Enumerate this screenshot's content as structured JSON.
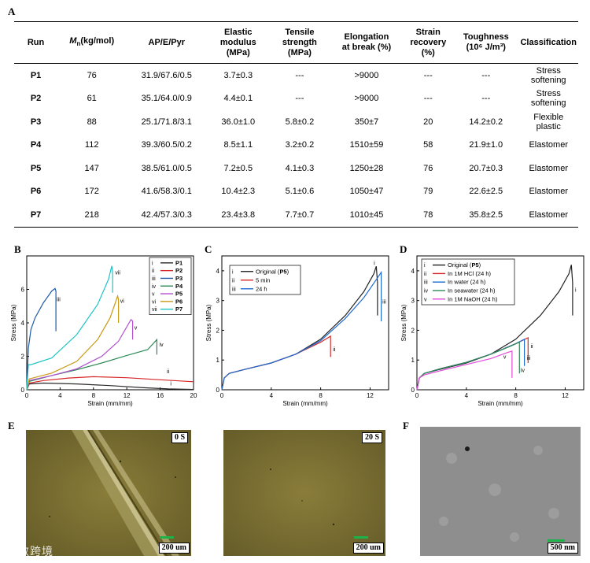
{
  "panels": {
    "A": "A",
    "B": "B",
    "C": "C",
    "D": "D",
    "E": "E",
    "F": "F"
  },
  "table": {
    "headers": [
      "Run",
      "Mn (kg/mol)",
      "AP/E/Pyr",
      "Elastic modulus (MPa)",
      "Tensile strength (MPa)",
      "Elongation at break (%)",
      "Strain recovery (%)",
      "Toughness (10⁶ J/m³)",
      "Classification"
    ],
    "header_lines": [
      [
        "Run"
      ],
      [
        "Mn(kg/mol)"
      ],
      [
        "AP/E/Pyr"
      ],
      [
        "Elastic",
        "modulus",
        "(MPa)"
      ],
      [
        "Tensile",
        "strength",
        "(MPa)"
      ],
      [
        "Elongation",
        "at break (%)"
      ],
      [
        "Strain",
        "recovery",
        "(%)"
      ],
      [
        "Toughness",
        "(10⁶ J/m³)"
      ],
      [
        "Classification"
      ]
    ],
    "mn_symbol": "M",
    "mn_sub": "n",
    "mn_unit": "(kg/mol)",
    "rows": [
      [
        "P1",
        "76",
        "31.9/67.6/0.5",
        "3.7±0.3",
        "---",
        ">9000",
        "---",
        "---",
        "Stress softening"
      ],
      [
        "P2",
        "61",
        "35.1/64.0/0.9",
        "4.4±0.1",
        "---",
        ">9000",
        "---",
        "---",
        "Stress softening"
      ],
      [
        "P3",
        "88",
        "25.1/71.8/3.1",
        "36.0±1.0",
        "5.8±0.2",
        "350±7",
        "20",
        "14.2±0.2",
        "Flexible plastic"
      ],
      [
        "P4",
        "112",
        "39.3/60.5/0.2",
        "8.5±1.1",
        "3.2±0.2",
        "1510±59",
        "58",
        "21.9±1.0",
        "Elastomer"
      ],
      [
        "P5",
        "147",
        "38.5/61.0/0.5",
        "7.2±0.5",
        "4.1±0.3",
        "1250±28",
        "76",
        "20.7±0.3",
        "Elastomer"
      ],
      [
        "P6",
        "172",
        "41.6/58.3/0.1",
        "10.4±2.3",
        "5.1±0.6",
        "1050±47",
        "79",
        "22.6±2.5",
        "Elastomer"
      ],
      [
        "P7",
        "218",
        "42.4/57.3/0.3",
        "23.4±3.8",
        "7.7±0.7",
        "1010±45",
        "78",
        "35.8±2.5",
        "Elastomer"
      ]
    ]
  },
  "chart_data": [
    {
      "panel": "B",
      "type": "line",
      "xlabel": "Strain (mm/mm)",
      "ylabel": "Stress (MPa)",
      "xlim": [
        0,
        20
      ],
      "ylim": [
        0,
        8
      ],
      "xticks": [
        0,
        4,
        8,
        12,
        16,
        20
      ],
      "yticks": [
        0,
        2,
        4,
        6
      ],
      "series": [
        {
          "numeral": "i",
          "name": "P1",
          "color": "#2b2b2b",
          "points": [
            [
              0,
              0
            ],
            [
              0.3,
              0.35
            ],
            [
              2,
              0.4
            ],
            [
              6,
              0.35
            ],
            [
              10,
              0.25
            ],
            [
              14,
              0.12
            ],
            [
              17,
              0.05
            ],
            [
              20,
              0.02
            ]
          ],
          "label_at": [
            17.2,
            0.25
          ]
        },
        {
          "numeral": "ii",
          "name": "P2",
          "color": "#d62728",
          "points": [
            [
              0,
              0
            ],
            [
              0.3,
              0.4
            ],
            [
              2,
              0.55
            ],
            [
              5,
              0.7
            ],
            [
              8,
              0.78
            ],
            [
              12,
              0.72
            ],
            [
              16,
              0.6
            ],
            [
              20,
              0.48
            ]
          ],
          "label_at": [
            16.8,
            1.0
          ]
        },
        {
          "numeral": "iii",
          "name": "P3",
          "color": "#1f5aa8",
          "points": [
            [
              0,
              0
            ],
            [
              0.2,
              2.5
            ],
            [
              0.5,
              3.6
            ],
            [
              1,
              4.3
            ],
            [
              2,
              5.2
            ],
            [
              3,
              5.9
            ],
            [
              3.4,
              6.05
            ],
            [
              3.5,
              5.9
            ],
            [
              3.5,
              3.5
            ]
          ],
          "label_at": [
            3.6,
            5.3
          ]
        },
        {
          "numeral": "iv",
          "name": "P4",
          "color": "#2e8b57",
          "points": [
            [
              0,
              0
            ],
            [
              0.3,
              0.5
            ],
            [
              3,
              0.85
            ],
            [
              6,
              1.2
            ],
            [
              9,
              1.6
            ],
            [
              12,
              2.05
            ],
            [
              14.5,
              2.4
            ],
            [
              15.6,
              3.0
            ],
            [
              15.6,
              2.1
            ]
          ],
          "label_at": [
            15.9,
            2.6
          ]
        },
        {
          "numeral": "v",
          "name": "P5",
          "color": "#b24fd0",
          "points": [
            [
              0,
              0
            ],
            [
              0.3,
              0.55
            ],
            [
              3,
              0.85
            ],
            [
              6,
              1.25
            ],
            [
              9,
              2.0
            ],
            [
              11,
              2.9
            ],
            [
              12.5,
              4.2
            ],
            [
              12.7,
              4.1
            ],
            [
              12.7,
              3.0
            ]
          ],
          "label_at": [
            12.9,
            3.6
          ]
        },
        {
          "numeral": "vi",
          "name": "P6",
          "color": "#c99a16",
          "points": [
            [
              0,
              0
            ],
            [
              0.3,
              0.65
            ],
            [
              3,
              1.0
            ],
            [
              6,
              1.7
            ],
            [
              8.5,
              3.0
            ],
            [
              10,
              4.3
            ],
            [
              10.9,
              5.6
            ],
            [
              11,
              5.4
            ],
            [
              11,
              4.0
            ]
          ],
          "label_at": [
            11.2,
            5.2
          ]
        },
        {
          "numeral": "vii",
          "name": "P7",
          "color": "#1fc4c4",
          "points": [
            [
              0,
              0
            ],
            [
              0.2,
              1.5
            ],
            [
              0.5,
              1.5
            ],
            [
              3,
              1.9
            ],
            [
              6,
              3.3
            ],
            [
              8.5,
              5.1
            ],
            [
              9.8,
              6.6
            ],
            [
              10.2,
              7.4
            ],
            [
              10.3,
              7.0
            ],
            [
              10.3,
              5.8
            ]
          ],
          "label_at": [
            10.6,
            6.9
          ]
        }
      ]
    },
    {
      "panel": "C",
      "type": "line",
      "xlabel": "Strain (mm/mm)",
      "ylabel": "Stress (MPa)",
      "xlim": [
        0,
        13.5
      ],
      "ylim": [
        0,
        4.5
      ],
      "xticks": [
        0,
        4,
        8,
        12
      ],
      "yticks": [
        0,
        1,
        2,
        3,
        4
      ],
      "series": [
        {
          "numeral": "i",
          "name": "Original (P5)",
          "color": "#222222",
          "points": [
            [
              0,
              0
            ],
            [
              0.2,
              0.4
            ],
            [
              0.6,
              0.55
            ],
            [
              2,
              0.7
            ],
            [
              4,
              0.9
            ],
            [
              6,
              1.2
            ],
            [
              8,
              1.7
            ],
            [
              10,
              2.5
            ],
            [
              11.5,
              3.3
            ],
            [
              12.3,
              3.9
            ],
            [
              12.5,
              4.15
            ],
            [
              12.6,
              3.6
            ],
            [
              12.6,
              2.5
            ]
          ],
          "label_at": [
            12.3,
            4.2
          ]
        },
        {
          "numeral": "ii",
          "name": "5 min",
          "color": "#d62728",
          "points": [
            [
              0,
              0
            ],
            [
              0.2,
              0.4
            ],
            [
              0.6,
              0.55
            ],
            [
              2,
              0.7
            ],
            [
              4,
              0.9
            ],
            [
              6,
              1.2
            ],
            [
              8,
              1.6
            ],
            [
              8.8,
              1.8
            ],
            [
              8.8,
              1.1
            ]
          ],
          "label_at": [
            9.0,
            1.3
          ]
        },
        {
          "numeral": "iii",
          "name": "24 h",
          "color": "#1f6bd0",
          "points": [
            [
              0,
              0
            ],
            [
              0.2,
              0.4
            ],
            [
              0.6,
              0.55
            ],
            [
              2,
              0.7
            ],
            [
              4,
              0.9
            ],
            [
              6,
              1.2
            ],
            [
              8,
              1.65
            ],
            [
              10,
              2.4
            ],
            [
              11.5,
              3.1
            ],
            [
              12.5,
              3.7
            ],
            [
              12.9,
              3.95
            ],
            [
              12.9,
              2.3
            ]
          ],
          "label_at": [
            13.0,
            2.9
          ]
        }
      ],
      "legend_bold": "P5"
    },
    {
      "panel": "D",
      "type": "line",
      "xlabel": "Strain (mm/mm)",
      "ylabel": "Stress (MPa)",
      "xlim": [
        0,
        13.5
      ],
      "ylim": [
        0,
        4.5
      ],
      "xticks": [
        0,
        4,
        8,
        12
      ],
      "yticks": [
        0,
        1,
        2,
        3,
        4
      ],
      "series": [
        {
          "numeral": "i",
          "name": "Original (P5)",
          "color": "#222222",
          "points": [
            [
              0,
              0
            ],
            [
              0.2,
              0.4
            ],
            [
              0.6,
              0.55
            ],
            [
              2,
              0.7
            ],
            [
              4,
              0.9
            ],
            [
              6,
              1.2
            ],
            [
              8,
              1.7
            ],
            [
              10,
              2.5
            ],
            [
              11.5,
              3.3
            ],
            [
              12.3,
              3.9
            ],
            [
              12.5,
              4.2
            ],
            [
              12.6,
              3.6
            ],
            [
              12.6,
              2.5
            ]
          ],
          "label_at": [
            12.8,
            3.3
          ]
        },
        {
          "numeral": "ii",
          "name": "In 1M HCl (24 h)",
          "color": "#d62728",
          "points": [
            [
              0,
              0
            ],
            [
              0.2,
              0.4
            ],
            [
              0.6,
              0.55
            ],
            [
              2,
              0.72
            ],
            [
              4,
              0.92
            ],
            [
              6,
              1.2
            ],
            [
              8,
              1.55
            ],
            [
              9,
              1.75
            ],
            [
              9,
              0.9
            ]
          ],
          "label_at": [
            9.2,
            1.4
          ]
        },
        {
          "numeral": "iii",
          "name": "In water (24 h)",
          "color": "#1f6bd0",
          "points": [
            [
              0,
              0
            ],
            [
              0.2,
              0.4
            ],
            [
              0.6,
              0.55
            ],
            [
              2,
              0.72
            ],
            [
              4,
              0.92
            ],
            [
              6,
              1.2
            ],
            [
              8,
              1.55
            ],
            [
              8.7,
              1.7
            ],
            [
              8.7,
              0.8
            ]
          ],
          "label_at": [
            8.9,
            1.0
          ]
        },
        {
          "numeral": "iv",
          "name": "In seawater (24 h)",
          "color": "#2e8b57",
          "points": [
            [
              0,
              0
            ],
            [
              0.2,
              0.4
            ],
            [
              0.6,
              0.55
            ],
            [
              2,
              0.72
            ],
            [
              4,
              0.92
            ],
            [
              6,
              1.2
            ],
            [
              7.5,
              1.45
            ],
            [
              8.3,
              1.6
            ],
            [
              8.3,
              0.55
            ]
          ],
          "label_at": [
            8.4,
            0.6
          ]
        },
        {
          "numeral": "v",
          "name": "In 1M NaOH (24 h)",
          "color": "#e04bd8",
          "points": [
            [
              0,
              0
            ],
            [
              0.2,
              0.4
            ],
            [
              0.6,
              0.5
            ],
            [
              2,
              0.65
            ],
            [
              4,
              0.85
            ],
            [
              6,
              1.05
            ],
            [
              7.3,
              1.25
            ],
            [
              7.7,
              1.3
            ],
            [
              7.7,
              0.4
            ]
          ],
          "label_at": [
            7.0,
            1.05
          ]
        }
      ],
      "legend_bold": "P5"
    }
  ],
  "images": {
    "E1": {
      "label": "0 S",
      "scale": "200 um"
    },
    "E2": {
      "label": "20 S",
      "scale": "200 um"
    },
    "F": {
      "scale": "500 nm"
    }
  },
  "watermark": "大数跨境",
  "colors": {
    "scale_bar": "#1db34a"
  }
}
